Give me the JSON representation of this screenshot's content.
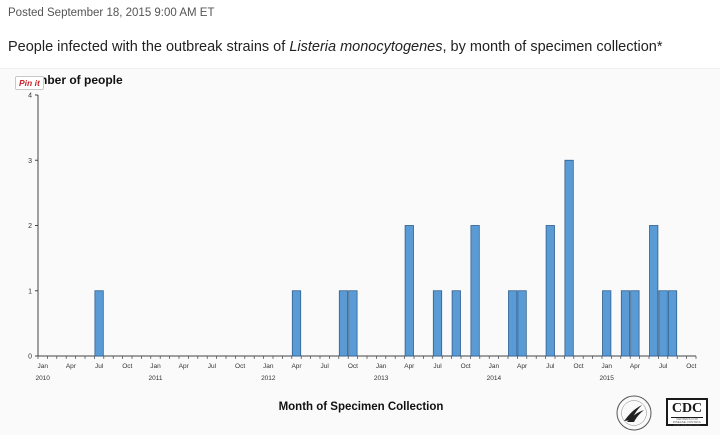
{
  "header": {
    "posted": "Posted September 18, 2015 9:00 AM ET",
    "headline_pre": "People infected with the outbreak strains of ",
    "headline_italic": "Listeria monocytogenes",
    "headline_post": ", by month of specimen collection*"
  },
  "pin_button": {
    "label": "Pin it"
  },
  "logos": {
    "cdc": "CDC",
    "cdc_sub": "CENTERS FOR DISEASE CONTROL AND PREVENTION"
  },
  "chart_data": {
    "type": "bar",
    "title": "",
    "ylabel": "Number of people",
    "ylabel_visible": "nber of people",
    "xlabel": "Month of Specimen Collection",
    "ylim": [
      0,
      4
    ],
    "yticks": [
      0,
      1,
      2,
      3,
      4
    ],
    "grid": false,
    "bar_color": "#5b9bd5",
    "bar_edge_color": "#2f5f8f",
    "month_start": "2010-01",
    "month_count": 70,
    "x_tick_labels": [
      {
        "month": "Jan",
        "year": "2010"
      },
      {
        "month": "Apr",
        "year": ""
      },
      {
        "month": "Jul",
        "year": ""
      },
      {
        "month": "Oct",
        "year": ""
      },
      {
        "month": "Jan",
        "year": "2011"
      },
      {
        "month": "Apr",
        "year": ""
      },
      {
        "month": "Jul",
        "year": ""
      },
      {
        "month": "Oct",
        "year": ""
      },
      {
        "month": "Jan",
        "year": "2012"
      },
      {
        "month": "Apr",
        "year": ""
      },
      {
        "month": "Jul",
        "year": ""
      },
      {
        "month": "Oct",
        "year": ""
      },
      {
        "month": "Jan",
        "year": "2013"
      },
      {
        "month": "Apr",
        "year": ""
      },
      {
        "month": "Jul",
        "year": ""
      },
      {
        "month": "Oct",
        "year": ""
      },
      {
        "month": "Jan",
        "year": "2014"
      },
      {
        "month": "Apr",
        "year": ""
      },
      {
        "month": "Jul",
        "year": ""
      },
      {
        "month": "Oct",
        "year": ""
      },
      {
        "month": "Jan",
        "year": "2015"
      },
      {
        "month": "Apr",
        "year": ""
      },
      {
        "month": "Jul",
        "year": ""
      },
      {
        "month": "Oct",
        "year": ""
      }
    ],
    "bars": [
      {
        "month": "2010-07",
        "value": 1
      },
      {
        "month": "2012-04",
        "value": 1
      },
      {
        "month": "2012-09",
        "value": 1
      },
      {
        "month": "2012-10",
        "value": 1
      },
      {
        "month": "2013-04",
        "value": 2
      },
      {
        "month": "2013-07",
        "value": 1
      },
      {
        "month": "2013-09",
        "value": 1
      },
      {
        "month": "2013-11",
        "value": 2
      },
      {
        "month": "2014-03",
        "value": 1
      },
      {
        "month": "2014-04",
        "value": 1
      },
      {
        "month": "2014-07",
        "value": 2
      },
      {
        "month": "2014-09",
        "value": 3
      },
      {
        "month": "2015-01",
        "value": 1
      },
      {
        "month": "2015-03",
        "value": 1
      },
      {
        "month": "2015-04",
        "value": 1
      },
      {
        "month": "2015-06",
        "value": 2
      },
      {
        "month": "2015-07",
        "value": 1
      },
      {
        "month": "2015-08",
        "value": 1
      }
    ]
  }
}
